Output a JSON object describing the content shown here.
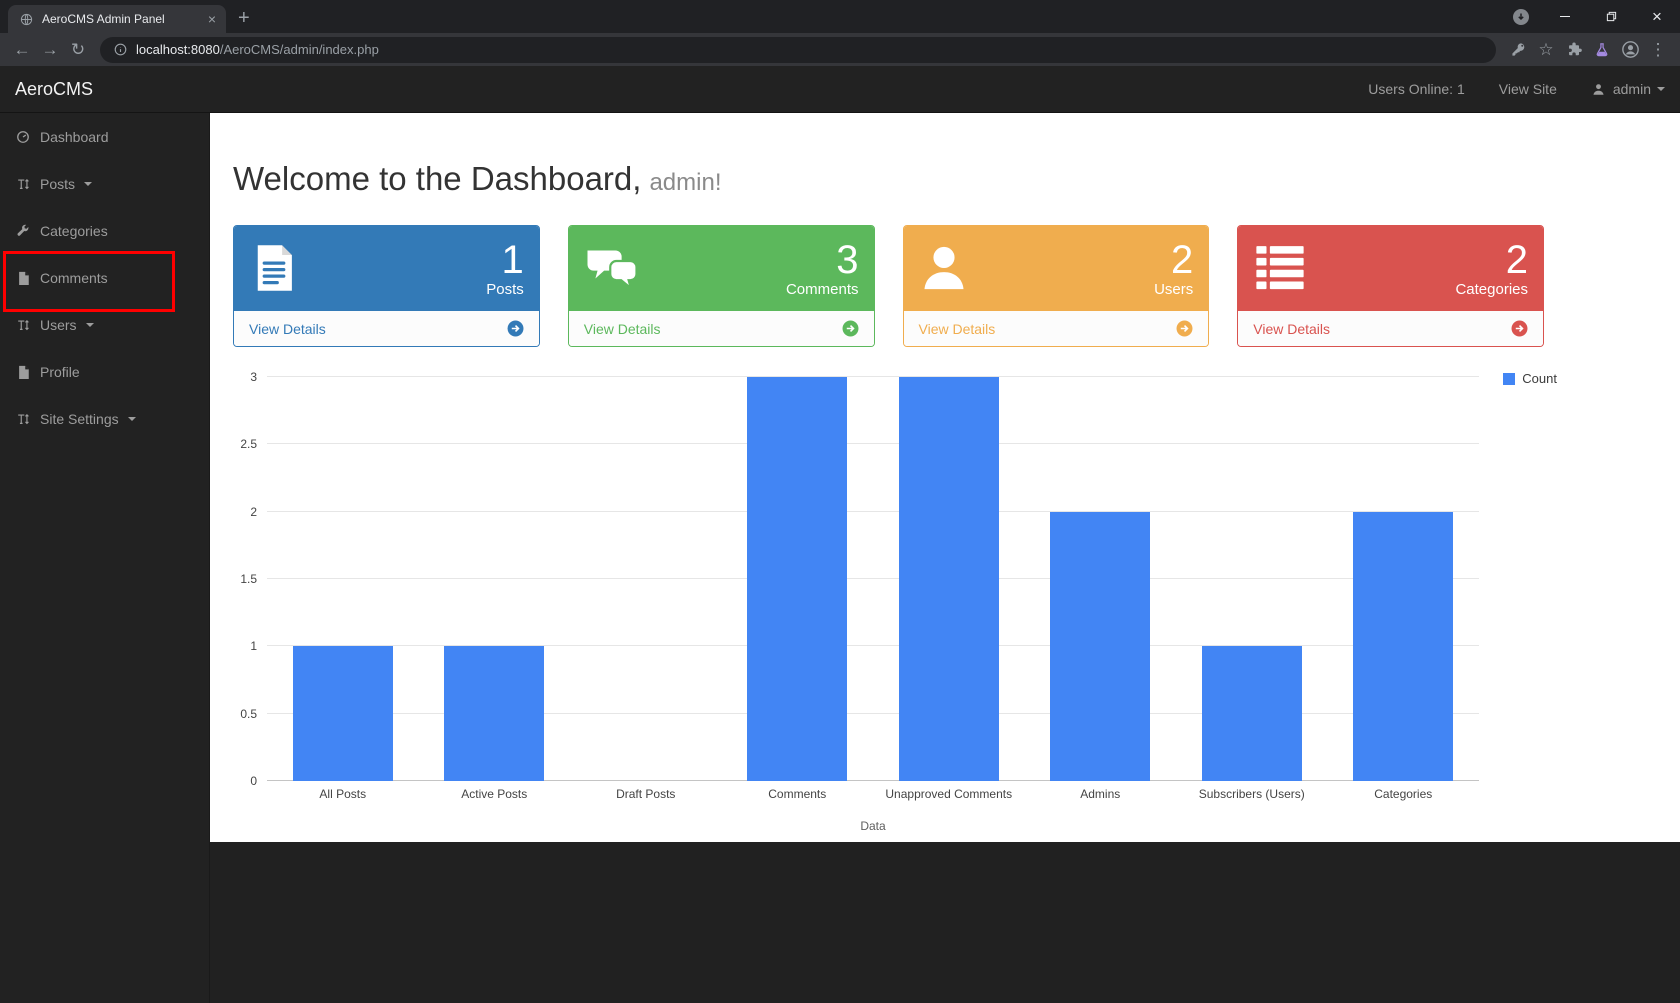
{
  "browser": {
    "tab_title": "AeroCMS Admin Panel",
    "url_host": "localhost:8080",
    "url_path": "/AeroCMS/admin/index.php"
  },
  "navbar": {
    "brand": "AeroCMS",
    "users_online": "Users Online: 1",
    "view_site": "View Site",
    "user": "admin"
  },
  "sidebar": {
    "items": [
      {
        "label": "Dashboard",
        "icon": "dashboard-icon",
        "dropdown": false
      },
      {
        "label": "Posts",
        "icon": "text-height-icon",
        "dropdown": true
      },
      {
        "label": "Categories",
        "icon": "wrench-icon",
        "dropdown": false
      },
      {
        "label": "Comments",
        "icon": "file-icon",
        "dropdown": false,
        "highlighted": true
      },
      {
        "label": "Users",
        "icon": "text-height-icon",
        "dropdown": true
      },
      {
        "label": "Profile",
        "icon": "file-icon",
        "dropdown": false
      },
      {
        "label": "Site Settings",
        "icon": "text-height-icon",
        "dropdown": true
      }
    ]
  },
  "main": {
    "welcome_title": "Welcome to the Dashboard,",
    "welcome_user": "admin!",
    "cards": [
      {
        "count": "1",
        "label": "Posts",
        "action": "View Details",
        "color": "#337ab7",
        "icon": "news-icon"
      },
      {
        "count": "3",
        "label": "Comments",
        "action": "View Details",
        "color": "#5cb85c",
        "icon": "comments-icon"
      },
      {
        "count": "2",
        "label": "Users",
        "action": "View Details",
        "color": "#f0ad4e",
        "icon": "user-icon"
      },
      {
        "count": "2",
        "label": "Categories",
        "action": "View Details",
        "color": "#d9534f",
        "icon": "list-icon"
      }
    ]
  },
  "chart_data": {
    "type": "bar",
    "categories": [
      "All Posts",
      "Active Posts",
      "Draft Posts",
      "Comments",
      "Unapproved Comments",
      "Admins",
      "Subscribers (Users)",
      "Categories"
    ],
    "values": [
      1,
      1,
      0,
      3,
      3,
      2,
      1,
      2
    ],
    "series": [
      {
        "name": "Count",
        "values": [
          1,
          1,
          0,
          3,
          3,
          2,
          1,
          2
        ]
      }
    ],
    "legend_label": "Count",
    "xlabel": "Data",
    "ylabel": "",
    "ylim": [
      0,
      3
    ],
    "yticks": [
      0,
      0.5,
      1,
      1.5,
      2,
      2.5,
      3
    ],
    "bar_color": "#4285f4",
    "grid": true,
    "legend_position": "top-right"
  },
  "annotation": {
    "color": "#ff0000"
  }
}
